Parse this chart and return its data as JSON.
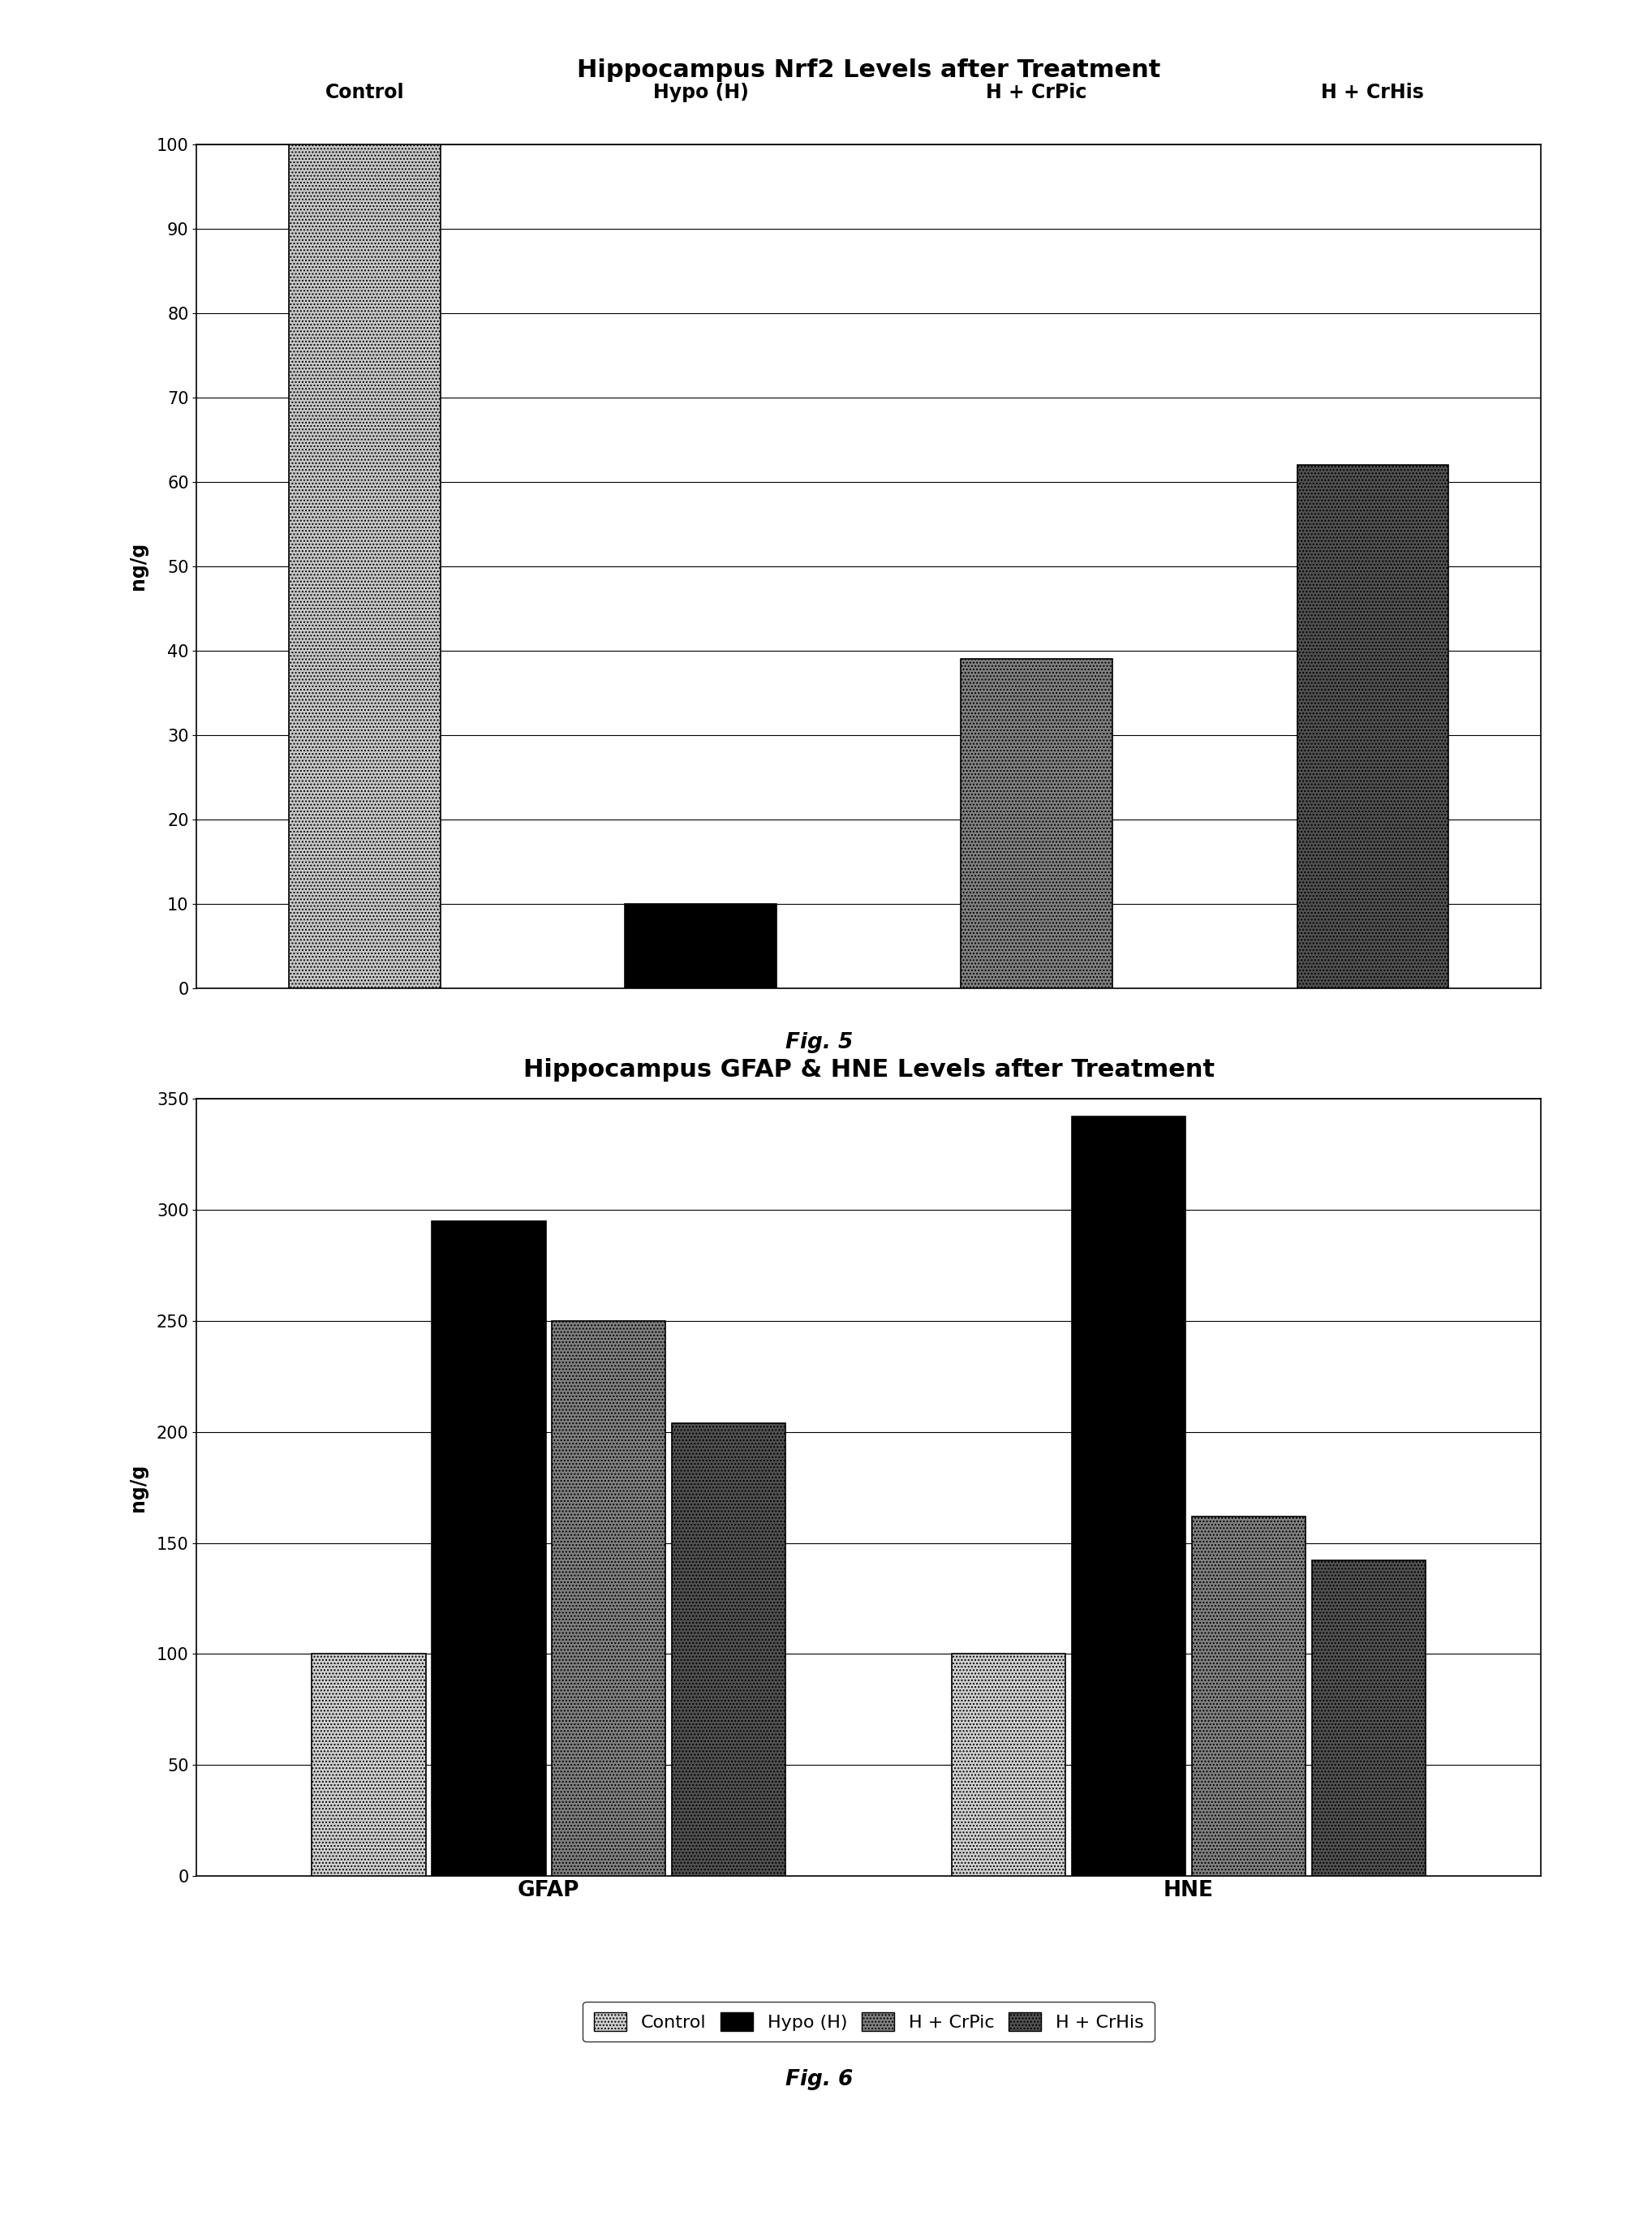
{
  "fig5": {
    "title": "Hippocampus Nrf2 Levels after Treatment",
    "ylabel": "ng/g",
    "ylim": [
      0,
      100
    ],
    "yticks": [
      0,
      10,
      20,
      30,
      40,
      50,
      60,
      70,
      80,
      90,
      100
    ],
    "categories": [
      "Control",
      "Hypo (H)",
      "H + CrPic",
      "H + CrHis"
    ],
    "values": [
      100,
      10,
      39,
      62
    ],
    "bar_colors": [
      "#c8c8c8",
      "#000000",
      "#808080",
      "#505050"
    ],
    "bar_hatches": [
      "....",
      "",
      "....",
      "...."
    ],
    "fig_label": "Fig. 5"
  },
  "fig6": {
    "title": "Hippocampus GFAP & HNE Levels after Treatment",
    "ylabel": "ng/g",
    "ylim": [
      0,
      350
    ],
    "yticks": [
      0,
      50,
      100,
      150,
      200,
      250,
      300,
      350
    ],
    "groups": [
      "GFAP",
      "HNE"
    ],
    "series_names": [
      "Control",
      "Hypo (H)",
      "H + CrPic",
      "H + CrHis"
    ],
    "series_values": [
      [
        100,
        100
      ],
      [
        295,
        342
      ],
      [
        250,
        162
      ],
      [
        204,
        142
      ]
    ],
    "bar_colors": [
      "#d0d0d0",
      "#000000",
      "#808080",
      "#505050"
    ],
    "bar_hatches": [
      "....",
      "",
      "....",
      "...."
    ],
    "fig_label": "Fig. 6"
  },
  "background_color": "#ffffff",
  "title_fontsize": 22,
  "label_fontsize": 17,
  "tick_fontsize": 15,
  "fig_label_fontsize": 19
}
